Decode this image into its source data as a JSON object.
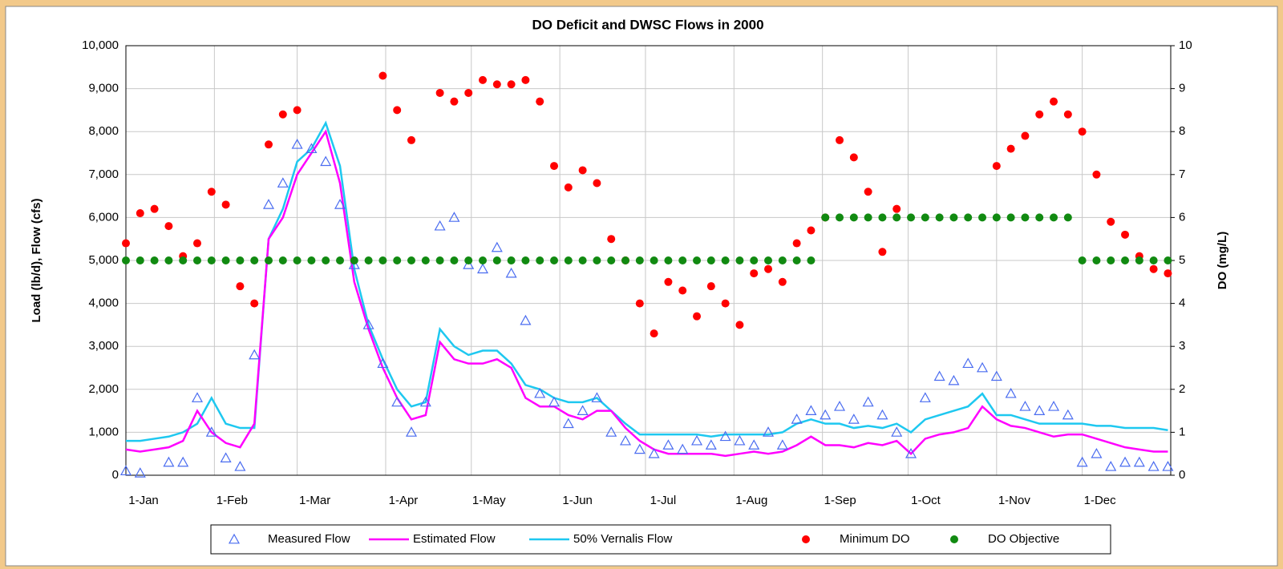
{
  "chart_data": {
    "type": "line",
    "title": "DO Deficit and DWSC Flows in 2000",
    "ylabel": "Load (lb/d), Flow (cfs)",
    "y2label": "DO (mg/L)",
    "x": [
      0,
      5,
      10,
      15,
      20,
      25,
      30,
      35,
      40,
      45,
      50,
      55,
      60,
      65,
      70,
      75,
      80,
      85,
      90,
      95,
      100,
      105,
      110,
      115,
      120,
      125,
      130,
      135,
      140,
      145,
      150,
      155,
      160,
      165,
      170,
      175,
      180,
      185,
      190,
      195,
      200,
      205,
      210,
      215,
      220,
      225,
      230,
      235,
      240,
      245,
      250,
      255,
      260,
      265,
      270,
      275,
      280,
      285,
      290,
      295,
      300,
      305,
      310,
      315,
      320,
      325,
      330,
      335,
      340,
      345,
      350,
      355,
      360,
      365
    ],
    "xlim": [
      0,
      366
    ],
    "xticks": [
      {
        "value": 0,
        "label": "1-Jan"
      },
      {
        "value": 31,
        "label": "1-Feb"
      },
      {
        "value": 60,
        "label": "1-Mar"
      },
      {
        "value": 91,
        "label": "1-Apr"
      },
      {
        "value": 121,
        "label": "1-May"
      },
      {
        "value": 152,
        "label": "1-Jun"
      },
      {
        "value": 182,
        "label": "1-Jul"
      },
      {
        "value": 213,
        "label": "1-Aug"
      },
      {
        "value": 244,
        "label": "1-Sep"
      },
      {
        "value": 274,
        "label": "1-Oct"
      },
      {
        "value": 305,
        "label": "1-Nov"
      },
      {
        "value": 335,
        "label": "1-Dec"
      }
    ],
    "ylim": [
      0,
      10000
    ],
    "yticks": [
      0,
      {
        "value": 1000,
        "label": "1,000"
      },
      {
        "value": 2000,
        "label": "2,000"
      },
      {
        "value": 3000,
        "label": "3,000"
      },
      {
        "value": 4000,
        "label": "4,000"
      },
      {
        "value": 5000,
        "label": "5,000"
      },
      {
        "value": 6000,
        "label": "6,000"
      },
      {
        "value": 7000,
        "label": "7,000"
      },
      {
        "value": 8000,
        "label": "8,000"
      },
      {
        "value": 9000,
        "label": "9,000"
      },
      {
        "value": 10000,
        "label": "10,000"
      }
    ],
    "y2lim": [
      0,
      10
    ],
    "y2ticks": [
      0,
      1,
      2,
      3,
      4,
      5,
      6,
      7,
      8,
      9,
      10
    ],
    "grid": true,
    "legend": "bottom",
    "series": [
      {
        "name": "Measured Flow",
        "color": "#4a6cf0",
        "marker": "triangle",
        "values": [
          100,
          50,
          null,
          300,
          300,
          1800,
          1000,
          400,
          200,
          2800,
          6300,
          6800,
          7700,
          7600,
          7300,
          6300,
          4900,
          3500,
          2600,
          1700,
          1000,
          1700,
          5800,
          6000,
          4900,
          4800,
          5300,
          4700,
          3600,
          1900,
          1700,
          1200,
          1500,
          1800,
          1000,
          800,
          600,
          500,
          700,
          600,
          800,
          700,
          900,
          800,
          700,
          1000,
          700,
          1300,
          1500,
          1400,
          1600,
          1300,
          1700,
          1400,
          1000,
          500,
          1800,
          2300,
          2200,
          2600,
          2500,
          2300,
          1900,
          1600,
          1500,
          1600,
          1400,
          300,
          500,
          200,
          300,
          300,
          200,
          200
        ]
      },
      {
        "name": "Estimated Flow",
        "color": "#ff00ff",
        "marker": "line",
        "values": [
          600,
          550,
          600,
          650,
          800,
          1500,
          1000,
          750,
          650,
          1200,
          5500,
          6000,
          7000,
          7500,
          8000,
          6800,
          4500,
          3400,
          2500,
          1800,
          1300,
          1400,
          3100,
          2700,
          2600,
          2600,
          2700,
          2500,
          1800,
          1600,
          1600,
          1400,
          1300,
          1500,
          1500,
          1100,
          800,
          600,
          500,
          500,
          500,
          500,
          450,
          500,
          550,
          500,
          550,
          700,
          900,
          700,
          700,
          650,
          750,
          700,
          800,
          500,
          850,
          950,
          1000,
          1100,
          1600,
          1300,
          1150,
          1100,
          1000,
          900,
          950,
          950,
          850,
          750,
          650,
          600,
          550,
          550
        ]
      },
      {
        "name": "50% Vernalis Flow",
        "color": "#1ec8f0",
        "marker": "line",
        "values": [
          800,
          800,
          850,
          900,
          1000,
          1200,
          1800,
          1200,
          1100,
          1100,
          5500,
          6200,
          7300,
          7600,
          8200,
          7200,
          4800,
          3500,
          2700,
          2000,
          1600,
          1700,
          3400,
          3000,
          2800,
          2900,
          2900,
          2600,
          2100,
          2000,
          1800,
          1700,
          1700,
          1800,
          1500,
          1200,
          950,
          950,
          950,
          950,
          950,
          900,
          950,
          950,
          950,
          950,
          1000,
          1200,
          1300,
          1200,
          1200,
          1100,
          1150,
          1100,
          1200,
          1000,
          1300,
          1400,
          1500,
          1600,
          1900,
          1400,
          1400,
          1300,
          1200,
          1200,
          1200,
          1200,
          1150,
          1150,
          1100,
          1100,
          1100,
          1050
        ]
      },
      {
        "name": "Minimum DO",
        "color": "#ff0000",
        "marker": "circle",
        "axis": "y2",
        "values": [
          5.4,
          6.1,
          6.2,
          5.8,
          5.1,
          5.4,
          6.6,
          6.3,
          4.4,
          4.0,
          7.7,
          8.4,
          8.5,
          null,
          null,
          null,
          null,
          null,
          9.3,
          8.5,
          7.8,
          null,
          8.9,
          8.7,
          8.9,
          9.2,
          9.1,
          9.1,
          9.2,
          8.7,
          7.2,
          6.7,
          7.1,
          6.8,
          5.5,
          5.0,
          4.0,
          3.3,
          4.5,
          4.3,
          3.7,
          4.4,
          4.0,
          3.5,
          4.7,
          4.8,
          4.5,
          5.4,
          5.7,
          6.0,
          7.8,
          7.4,
          6.6,
          5.2,
          6.2,
          null,
          null,
          null,
          null,
          null,
          null,
          7.2,
          7.6,
          7.9,
          8.4,
          8.7,
          8.4,
          8.0,
          7.0,
          5.9,
          5.6,
          5.1,
          4.8,
          4.7
        ]
      },
      {
        "name": "DO Objective",
        "color": "#118a11",
        "marker": "circle",
        "axis": "y2",
        "values": [
          5,
          5,
          5,
          5,
          5,
          5,
          5,
          5,
          5,
          5,
          5,
          5,
          5,
          5,
          5,
          5,
          5,
          5,
          5,
          5,
          5,
          5,
          5,
          5,
          5,
          5,
          5,
          5,
          5,
          5,
          5,
          5,
          5,
          5,
          5,
          5,
          5,
          5,
          5,
          5,
          5,
          5,
          5,
          5,
          5,
          5,
          5,
          5,
          5,
          6,
          6,
          6,
          6,
          6,
          6,
          6,
          6,
          6,
          6,
          6,
          6,
          6,
          6,
          6,
          6,
          6,
          6,
          5,
          5,
          5,
          5,
          5,
          5,
          5
        ]
      }
    ]
  }
}
